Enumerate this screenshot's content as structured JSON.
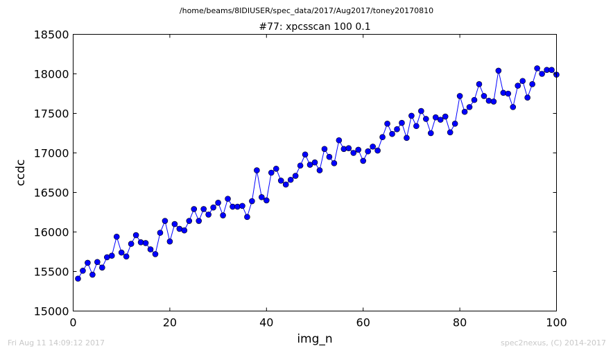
{
  "header": {
    "path": "/home/beams/8IDIUSER/spec_data/2017/Aug2017/toney20170810"
  },
  "footer": {
    "timestamp": "Fri Aug 11 14:09:12 2017",
    "credit": "spec2nexus, (C) 2014-2017"
  },
  "colors": {
    "line": "#0000ff",
    "marker_fill": "#0000ff",
    "marker_edge": "#000000",
    "axes": "#000000",
    "background": "#ffffff"
  },
  "chart_data": {
    "type": "line",
    "title": "#77: xpcsscan 100 0.1",
    "xlabel": "img_n",
    "ylabel": "ccdc",
    "xlim": [
      0,
      100
    ],
    "ylim": [
      15000,
      18500
    ],
    "xticks": [
      0,
      20,
      40,
      60,
      80,
      100
    ],
    "yticks": [
      15000,
      15500,
      16000,
      16500,
      17000,
      17500,
      18000,
      18500
    ],
    "grid": false,
    "legend": "none",
    "series": [
      {
        "marker": "circle",
        "x": [
          1,
          2,
          3,
          4,
          5,
          6,
          7,
          8,
          9,
          10,
          11,
          12,
          13,
          14,
          15,
          16,
          17,
          18,
          19,
          20,
          21,
          22,
          23,
          24,
          25,
          26,
          27,
          28,
          29,
          30,
          31,
          32,
          33,
          34,
          35,
          36,
          37,
          38,
          39,
          40,
          41,
          42,
          43,
          44,
          45,
          46,
          47,
          48,
          49,
          50,
          51,
          52,
          53,
          54,
          55,
          56,
          57,
          58,
          59,
          60,
          61,
          62,
          63,
          64,
          65,
          66,
          67,
          68,
          69,
          70,
          71,
          72,
          73,
          74,
          75,
          76,
          77,
          78,
          79,
          80,
          81,
          82,
          83,
          84,
          85,
          86,
          87,
          88,
          89,
          90,
          91,
          92,
          93,
          94,
          95,
          96,
          97,
          98,
          99,
          100
        ],
        "y": [
          15410,
          15510,
          15610,
          15460,
          15620,
          15550,
          15680,
          15700,
          15940,
          15740,
          15690,
          15850,
          15960,
          15870,
          15860,
          15780,
          15720,
          15990,
          16140,
          15880,
          16100,
          16040,
          16020,
          16140,
          16290,
          16140,
          16290,
          16220,
          16310,
          16370,
          16210,
          16420,
          16320,
          16320,
          16330,
          16190,
          16390,
          16780,
          16440,
          16400,
          16750,
          16800,
          16650,
          16600,
          16660,
          16710,
          16840,
          16980,
          16850,
          16880,
          16780,
          17050,
          16950,
          16870,
          17160,
          17050,
          17060,
          17000,
          17040,
          16900,
          17020,
          17080,
          17030,
          17200,
          17370,
          17240,
          17300,
          17380,
          17190,
          17470,
          17340,
          17530,
          17430,
          17250,
          17450,
          17420,
          17460,
          17260,
          17370,
          17720,
          17520,
          17580,
          17670,
          17870,
          17720,
          17660,
          17650,
          18040,
          17760,
          17750,
          17580,
          17850,
          17910,
          17700,
          17870,
          18070,
          18000,
          18050,
          18050,
          17990
        ]
      }
    ]
  }
}
